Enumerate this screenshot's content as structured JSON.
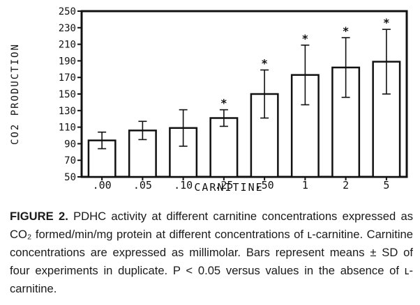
{
  "chart_data": {
    "type": "bar",
    "title": "",
    "xlabel": "CARNITINE",
    "ylabel": "CO2 PRODUCTION",
    "categories": [
      ".00",
      ".05",
      ".10",
      ".25",
      ".50",
      "1",
      "2",
      "5"
    ],
    "values": [
      94,
      106,
      109,
      121,
      150,
      173,
      182,
      189
    ],
    "error_sd": [
      10,
      11,
      22,
      10,
      29,
      36,
      36,
      39
    ],
    "significant": [
      false,
      false,
      false,
      true,
      true,
      true,
      true,
      true
    ],
    "significance_marker": "*",
    "ylim": [
      50,
      250
    ],
    "yticks": [
      50,
      70,
      90,
      110,
      130,
      150,
      170,
      190,
      210,
      230,
      250
    ],
    "grid": false,
    "legend": "none",
    "colors": {
      "bar_fill": "#ffffff",
      "ink": "#111111"
    }
  },
  "caption": {
    "label": "FIGURE 2.",
    "text": "PDHC activity at different carnitine concentrations expressed as CO₂ formed/min/mg protein at different concentrations of ʟ-carnitine. Carnitine concentrations are expressed as millimolar. Bars represent means ± SD of four experiments in duplicate. P < 0.05 versus values in the absence of ʟ-carnitine."
  }
}
